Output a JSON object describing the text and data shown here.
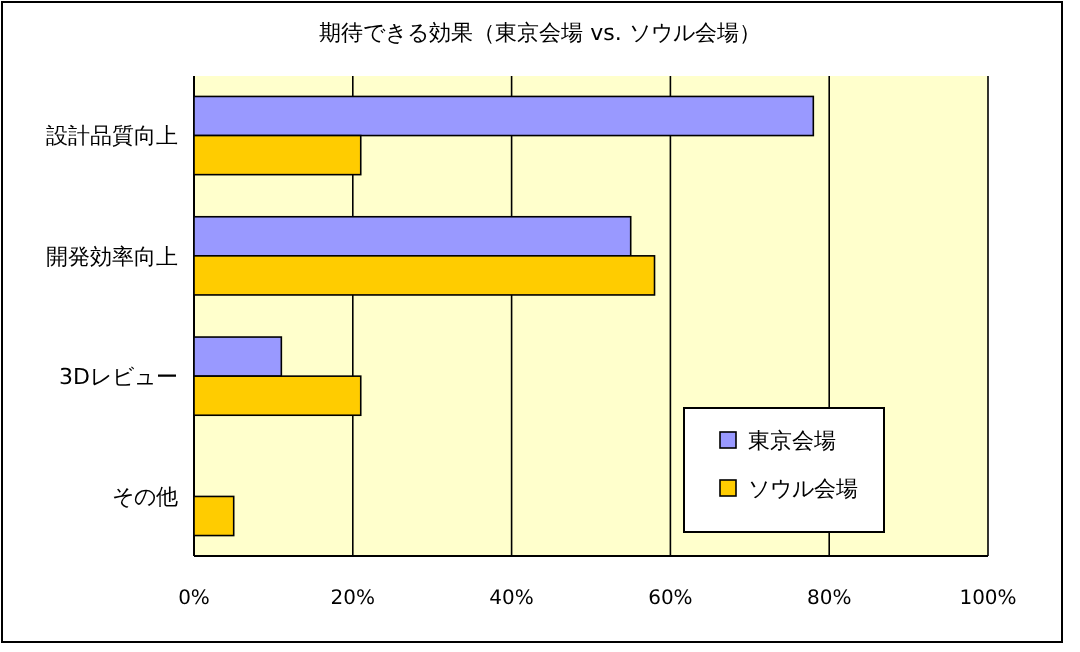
{
  "chart_data": {
    "type": "bar",
    "orientation": "horizontal",
    "title": "期待できる効果（東京会場 vs. ソウル会場）",
    "categories": [
      "設計品質向上",
      "開発効率向上",
      "3Dレビュー",
      "その他"
    ],
    "series": [
      {
        "name": "東京会場",
        "color": "#9999ff",
        "values": [
          78,
          55,
          11,
          0
        ]
      },
      {
        "name": "ソウル会場",
        "color": "#ffcc00",
        "values": [
          21,
          58,
          21,
          5
        ]
      }
    ],
    "xlim": [
      0,
      100
    ],
    "xticks": [
      {
        "value": 0,
        "label": "0%"
      },
      {
        "value": 20,
        "label": "20%"
      },
      {
        "value": 40,
        "label": "40%"
      },
      {
        "value": 60,
        "label": "60%"
      },
      {
        "value": 80,
        "label": "80%"
      },
      {
        "value": 100,
        "label": "100%"
      }
    ],
    "grid": "x",
    "legend": "bottom right"
  }
}
